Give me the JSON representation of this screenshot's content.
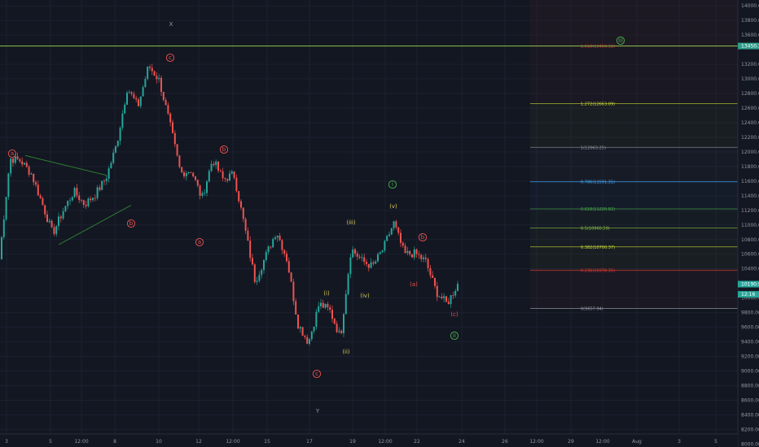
{
  "chart_data": {
    "type": "candlestick",
    "x_ticks": [
      "3",
      "5",
      "12:00",
      "8",
      "10",
      "12",
      "12:00",
      "15",
      "17",
      "19",
      "12:00",
      "22",
      "24",
      "26",
      "12:00",
      "29",
      "12:00",
      "Aug",
      "3",
      "5"
    ],
    "y_ticks": [
      "14000.00",
      "13800.00",
      "13600.00",
      "13200.00",
      "13000.00",
      "12800.00",
      "12600.00",
      "12400.00",
      "12200.00",
      "12000.00",
      "11800.00",
      "11600.00",
      "11400.00",
      "11200.00",
      "11000.00",
      "10800.00",
      "10600.00",
      "10400.00",
      "10000.00",
      "9800.00",
      "9600.00",
      "9400.00",
      "9200.00",
      "9000.00",
      "8800.00",
      "8600.00",
      "8400.00",
      "8200.00",
      "8000.00"
    ],
    "ylim": [
      7960,
      14080
    ],
    "price_labels": [
      {
        "price": 13450,
        "text": "13450.32",
        "color": "#2e9e8a"
      },
      {
        "price": 10190,
        "text": "10190.99",
        "color": "#26a69a"
      },
      {
        "price": 10050,
        "text": "12:16",
        "color": "#26a69a"
      }
    ],
    "resistance_line": {
      "price": 13450,
      "color": "#8bc34a"
    },
    "fib_levels": [
      {
        "price": 13450,
        "label": "1.618(13450.32)",
        "color": "#e53935"
      },
      {
        "price": 12663,
        "label": "1.272(12663.09)",
        "color": "#cddc39"
      },
      {
        "price": 12063,
        "label": "1(12063.25)",
        "color": "#9598a1"
      },
      {
        "price": 11591,
        "label": "0.786(11591.31)",
        "color": "#42a5f5"
      },
      {
        "price": 11220,
        "label": "0.618(11220.82)",
        "color": "#4caf50"
      },
      {
        "price": 10960,
        "label": "0.5(10960.59)",
        "color": "#8bc34a"
      },
      {
        "price": 10700,
        "label": "0.382(10700.37)",
        "color": "#cddc39"
      },
      {
        "price": 10378,
        "label": "0.236(10378.35)",
        "color": "#e53935"
      },
      {
        "price": 9858,
        "label": "0(9857.94)",
        "color": "#9598a1"
      }
    ],
    "wave_labels": [
      {
        "text": "X",
        "color": "#9598a1",
        "circle": false
      },
      {
        "text": "c",
        "color": "#ef5350",
        "circle": true
      },
      {
        "text": "a",
        "color": "#ef5350",
        "circle": true
      },
      {
        "text": "b",
        "color": "#ef5350",
        "circle": true
      },
      {
        "text": "b",
        "color": "#ef5350",
        "circle": true
      },
      {
        "text": "a",
        "color": "#ef5350",
        "circle": true
      },
      {
        "text": "c",
        "color": "#ef5350",
        "circle": true
      },
      {
        "text": "Y",
        "color": "#9598a1",
        "circle": false
      },
      {
        "text": "(i)",
        "color": "#d4c95a",
        "circle": false
      },
      {
        "text": "(ii)",
        "color": "#d4c95a",
        "circle": false
      },
      {
        "text": "(iii)",
        "color": "#d4c95a",
        "circle": false
      },
      {
        "text": "(iv)",
        "color": "#d4c95a",
        "circle": false
      },
      {
        "text": "(v)",
        "color": "#d4c95a",
        "circle": false
      },
      {
        "text": "i",
        "color": "#4caf50",
        "circle": true
      },
      {
        "text": "(a)",
        "color": "#ef5350",
        "circle": false
      },
      {
        "text": "b",
        "color": "#ef5350",
        "circle": true
      },
      {
        "text": "(c)",
        "color": "#ef5350",
        "circle": false
      },
      {
        "text": "ii",
        "color": "#4caf50",
        "circle": true
      },
      {
        "text": "iii",
        "color": "#4caf50",
        "circle": true
      }
    ],
    "waypoints": [
      [
        9300,
        10530
      ],
      [
        9280,
        11910
      ],
      [
        9260,
        11880
      ],
      [
        9270,
        11700
      ],
      [
        9230,
        11300
      ],
      [
        9210,
        10880
      ],
      [
        9280,
        11200
      ],
      [
        9300,
        11460
      ],
      [
        9230,
        11280
      ],
      [
        9240,
        11420
      ],
      [
        9370,
        11640
      ],
      [
        9330,
        12100
      ],
      [
        9320,
        12880
      ],
      [
        9350,
        12620
      ],
      [
        9330,
        13180
      ],
      [
        9370,
        12980
      ],
      [
        9240,
        12380
      ],
      [
        9160,
        11710
      ],
      [
        9220,
        11750
      ],
      [
        9340,
        11360
      ],
      [
        9330,
        11900
      ],
      [
        9350,
        11620
      ],
      [
        9390,
        11700
      ],
      [
        9170,
        10980
      ],
      [
        9080,
        10230
      ],
      [
        9180,
        10580
      ],
      [
        9370,
        10920
      ],
      [
        9310,
        10520
      ],
      [
        9050,
        9650
      ],
      [
        9120,
        9390
      ],
      [
        9100,
        9920
      ],
      [
        9270,
        9830
      ],
      [
        9250,
        9460
      ],
      [
        9320,
        10680
      ],
      [
        9330,
        10510
      ],
      [
        9310,
        10430
      ],
      [
        9290,
        10670
      ],
      [
        9340,
        11030
      ],
      [
        9280,
        10600
      ],
      [
        9350,
        10610
      ],
      [
        9290,
        10500
      ],
      [
        9320,
        10080
      ],
      [
        9210,
        9920
      ],
      [
        9420,
        10190
      ]
    ]
  }
}
